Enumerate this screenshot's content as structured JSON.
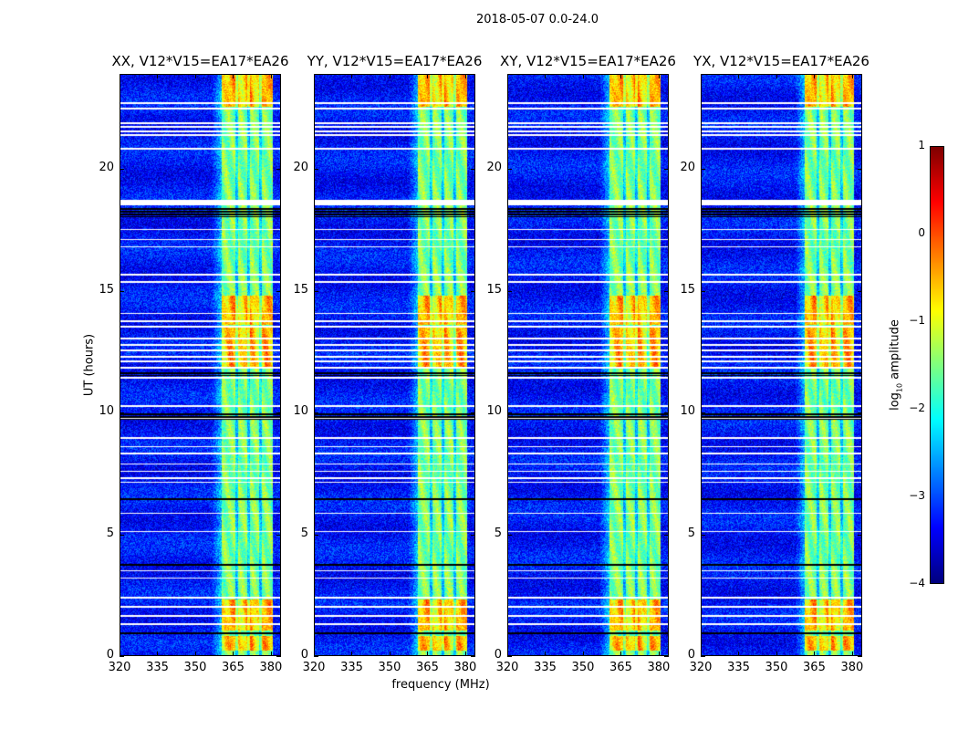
{
  "chart_data": {
    "type": "heatmap",
    "title": "2018-05-07 0.0-24.0",
    "xlabel": "frequency (MHz)",
    "ylabel": "UT (hours)",
    "xlim": [
      320,
      384
    ],
    "ylim": [
      0,
      23.9
    ],
    "xticks": [
      "320",
      "335",
      "350",
      "365",
      "380"
    ],
    "xtick_values": [
      320,
      335,
      350,
      365,
      380
    ],
    "yticks": [
      "0",
      "5",
      "10",
      "15",
      "20"
    ],
    "ytick_values": [
      0,
      5,
      10,
      15,
      20
    ],
    "panels": [
      {
        "title": "XX, V12*V15=EA17*EA26",
        "band_start_mhz": 360.5
      },
      {
        "title": "YY, V12*V15=EA17*EA26",
        "band_start_mhz": 361.5
      },
      {
        "title": "XY, V12*V15=EA17*EA26",
        "band_start_mhz": 360.5
      },
      {
        "title": "YX, V12*V15=EA17*EA26",
        "band_start_mhz": 361.5
      }
    ],
    "signal_band_mhz": [
      360,
      381
    ],
    "subband_gaps_mhz": [
      366.5,
      371.5,
      376.2
    ],
    "background_log_amp": -3.3,
    "band_log_amp": -1.5,
    "bright_hour_ranges": [
      [
        0.2,
        0.8
      ],
      [
        1.0,
        2.3
      ],
      [
        11.8,
        13.5
      ],
      [
        13.6,
        14.8
      ],
      [
        22.6,
        23.9
      ]
    ],
    "flagged_white_hours": [
      22.73,
      22.51,
      21.91,
      21.76,
      21.57,
      21.42,
      20.85,
      18.65,
      17.53,
      17.12,
      16.82,
      15.66,
      15.36,
      14.08,
      13.75,
      13.52,
      13.03,
      12.77,
      12.55,
      12.28,
      12.1,
      11.84,
      11.61,
      11.42,
      10.26,
      9.74,
      8.95,
      8.58,
      8.31,
      7.87,
      7.57,
      7.3,
      7.12,
      5.84,
      5.09,
      3.48,
      3.18,
      2.36,
      1.99,
      1.61,
      1.27
    ],
    "flagged_black_hour_ranges": [
      [
        18.05,
        18.4
      ],
      [
        9.7,
        10.0
      ],
      [
        11.5,
        11.7
      ],
      [
        6.35,
        6.45
      ],
      [
        3.65,
        3.75
      ],
      [
        0.83,
        0.98
      ]
    ],
    "colorbar": {
      "label": "log10 amplitude",
      "label_main": "log",
      "label_sub": "10",
      "label_rest": " amplitude",
      "range": [
        -4,
        1
      ],
      "ticks": [
        "1",
        "0",
        "−1",
        "−2",
        "−3",
        "−4"
      ],
      "tick_values": [
        1,
        0,
        -1,
        -2,
        -3,
        -4
      ],
      "colormap": "jet"
    }
  }
}
